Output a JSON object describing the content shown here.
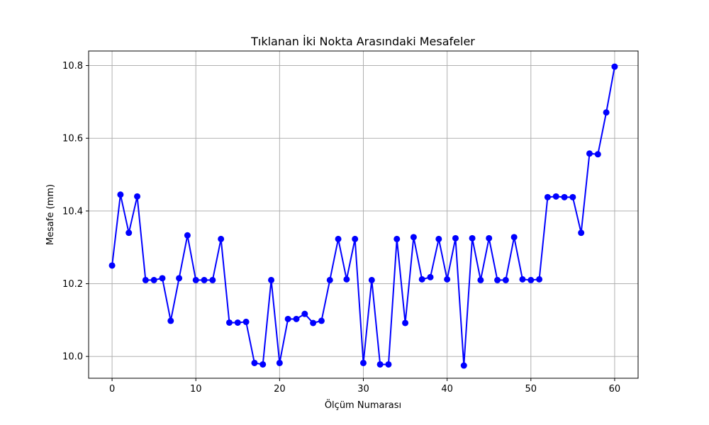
{
  "chart_data": {
    "type": "line",
    "title": "Tıklanan İki Nokta Arasındaki Mesafeler",
    "xlabel": "Ölçüm Numarası",
    "ylabel": "Mesafe (mm)",
    "xlim": [
      -2.8,
      62.8
    ],
    "ylim": [
      9.94,
      10.84
    ],
    "grid": true,
    "legend": "none",
    "x_ticks": [
      0,
      10,
      20,
      30,
      40,
      50,
      60
    ],
    "x_tick_labels": [
      "0",
      "10",
      "20",
      "30",
      "40",
      "50",
      "60"
    ],
    "y_ticks": [
      10.0,
      10.2,
      10.4,
      10.6,
      10.8
    ],
    "y_tick_labels": [
      "10.0",
      "10.2",
      "10.4",
      "10.6",
      "10.8"
    ],
    "series": [
      {
        "color": "#0000ff",
        "marker": "circle",
        "x": [
          0,
          1,
          2,
          3,
          4,
          5,
          6,
          7,
          8,
          9,
          10,
          11,
          12,
          13,
          14,
          15,
          16,
          17,
          18,
          19,
          20,
          21,
          22,
          23,
          24,
          25,
          26,
          27,
          28,
          29,
          30,
          31,
          32,
          33,
          34,
          35,
          36,
          37,
          38,
          39,
          40,
          41,
          42,
          43,
          44,
          45,
          46,
          47,
          48,
          49,
          50,
          51,
          52,
          53,
          54,
          55,
          56,
          57,
          58,
          59,
          60
        ],
        "values": [
          10.25,
          10.445,
          10.34,
          10.44,
          10.21,
          10.21,
          10.215,
          10.098,
          10.215,
          10.333,
          10.21,
          10.21,
          10.21,
          10.323,
          10.093,
          10.093,
          10.095,
          9.982,
          9.978,
          10.21,
          9.982,
          10.103,
          10.103,
          10.117,
          10.092,
          10.098,
          10.21,
          10.323,
          10.212,
          10.323,
          9.982,
          10.21,
          9.978,
          9.978,
          10.323,
          10.092,
          10.328,
          10.212,
          10.218,
          10.323,
          10.212,
          10.325,
          9.975,
          10.325,
          10.21,
          10.325,
          10.21,
          10.21,
          10.328,
          10.212,
          10.21,
          10.212,
          10.438,
          10.44,
          10.438,
          10.438,
          10.34,
          10.558,
          10.556,
          10.671,
          10.797
        ]
      }
    ]
  }
}
